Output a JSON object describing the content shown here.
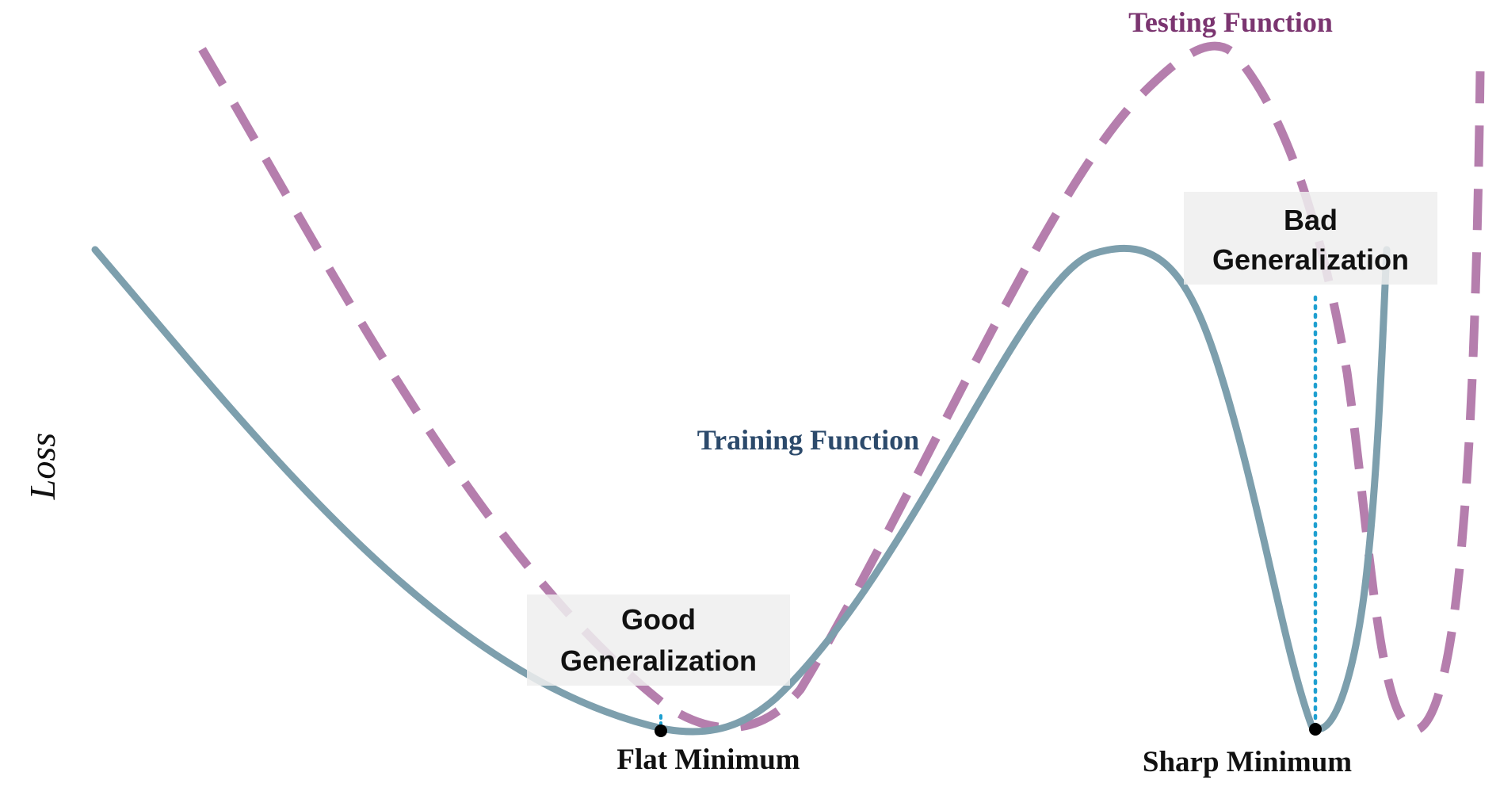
{
  "colors": {
    "training_curve": "#7d9fad",
    "testing_curve": "#b57ead",
    "testing_title": "#7b3570",
    "training_title": "#2c4a6b",
    "marker_line": "#1e9fd0",
    "callout_box": "#efefef",
    "minimum_dot": "#000000",
    "text": "#111111"
  },
  "labels": {
    "y_axis": "Loss",
    "testing_function": "Testing Function",
    "training_function": "Training Function",
    "flat_minimum": "Flat Minimum",
    "sharp_minimum": "Sharp Minimum",
    "good_generalization_line1": "Good",
    "good_generalization_line2": "Generalization",
    "bad_generalization_line1": "Bad",
    "bad_generalization_line2": "Generalization"
  },
  "curves": {
    "training": {
      "style": "solid"
    },
    "testing": {
      "style": "dashed"
    }
  },
  "markers": {
    "flat_minimum": {
      "style": "dotted",
      "icon": "dot"
    },
    "sharp_minimum": {
      "style": "dotted",
      "icon": "dot"
    }
  }
}
